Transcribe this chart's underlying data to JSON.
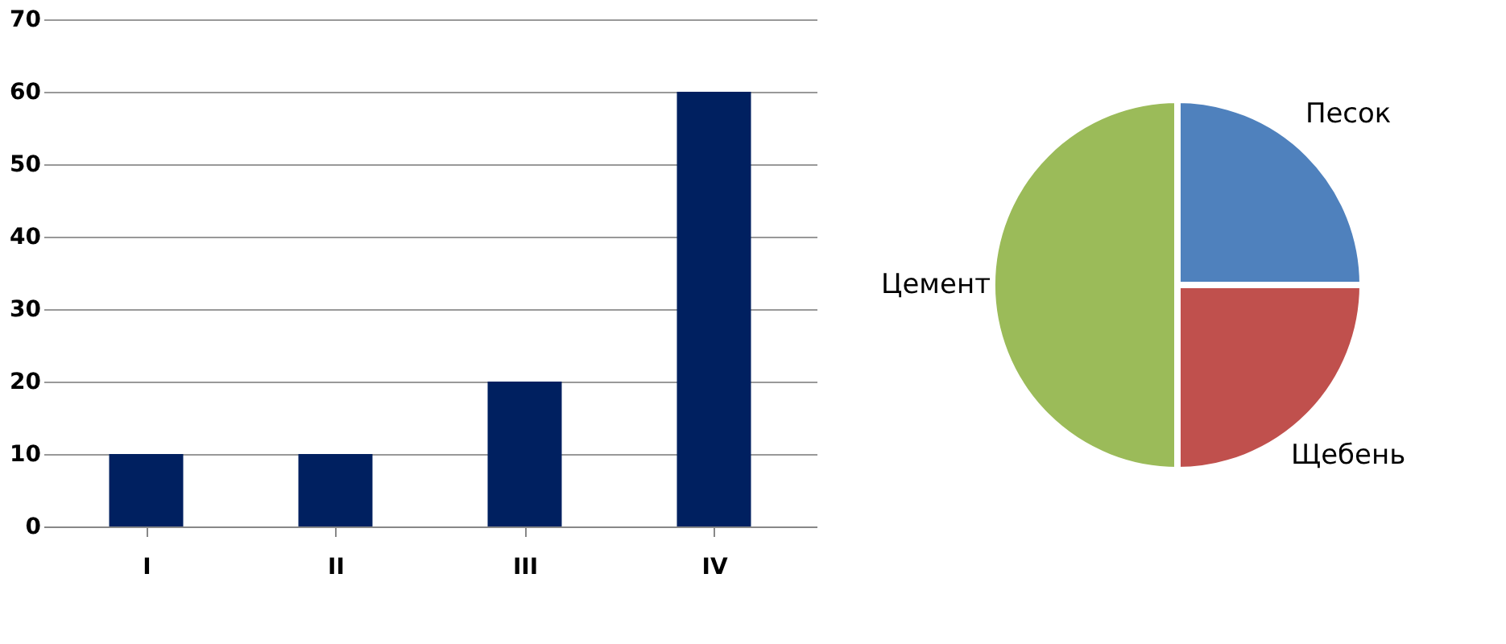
{
  "chart_data": [
    {
      "type": "bar",
      "categories": [
        "I",
        "II",
        "III",
        "IV"
      ],
      "values": [
        10,
        10,
        20,
        60
      ],
      "color": "#002060",
      "ylim": [
        0,
        70
      ],
      "yticks": [
        0,
        10,
        20,
        30,
        40,
        50,
        60,
        70
      ],
      "grid": "y"
    },
    {
      "type": "pie",
      "categories": [
        "Песок",
        "Щебень",
        "Цемент"
      ],
      "values": [
        25,
        25,
        50
      ],
      "colors": [
        "#4f81bd",
        "#c0504d",
        "#9bbb59"
      ]
    }
  ]
}
